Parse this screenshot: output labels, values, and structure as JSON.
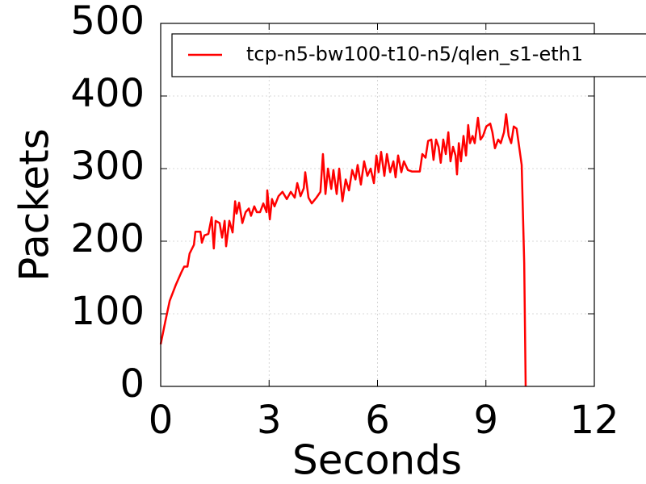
{
  "chart_data": {
    "type": "line",
    "x_label": "Seconds",
    "y_label": "Packets",
    "xlim": [
      0,
      12
    ],
    "xticks": [
      0,
      3,
      6,
      9,
      12
    ],
    "ylim": [
      0,
      500
    ],
    "yticks": [
      0,
      100,
      200,
      300,
      400,
      500
    ],
    "grid": true,
    "legend": "upper left",
    "series": [
      {
        "name": "tcp-n5-bw100-t10-n5/qlen_s1-eth1",
        "color": "#ff0000",
        "x": [
          0,
          0.13,
          0.25,
          0.42,
          0.58,
          0.65,
          0.74,
          0.8,
          0.92,
          0.96,
          1.1,
          1.14,
          1.21,
          1.32,
          1.41,
          1.47,
          1.52,
          1.63,
          1.7,
          1.77,
          1.81,
          1.9,
          1.99,
          2.06,
          2.1,
          2.17,
          2.26,
          2.35,
          2.44,
          2.5,
          2.59,
          2.66,
          2.75,
          2.84,
          2.93,
          2.95,
          3.02,
          3.08,
          3.15,
          3.26,
          3.37,
          3.49,
          3.6,
          3.71,
          3.78,
          3.87,
          3.96,
          4.0,
          4.09,
          4.18,
          4.31,
          4.42,
          4.49,
          4.56,
          4.63,
          4.72,
          4.78,
          4.87,
          4.94,
          5.03,
          5.12,
          5.21,
          5.3,
          5.39,
          5.45,
          5.54,
          5.63,
          5.72,
          5.81,
          5.9,
          5.97,
          6.03,
          6.1,
          6.19,
          6.26,
          6.35,
          6.44,
          6.5,
          6.57,
          6.66,
          6.73,
          6.84,
          6.95,
          7.17,
          7.24,
          7.33,
          7.4,
          7.49,
          7.55,
          7.62,
          7.69,
          7.75,
          7.82,
          7.89,
          7.96,
          8.02,
          8.09,
          8.16,
          8.2,
          8.25,
          8.31,
          8.38,
          8.45,
          8.51,
          8.56,
          8.63,
          8.69,
          8.78,
          8.85,
          8.92,
          9.01,
          9.12,
          9.18,
          9.25,
          9.34,
          9.41,
          9.5,
          9.56,
          9.63,
          9.7,
          9.77,
          9.85,
          9.92,
          9.99,
          10.06,
          10.1
        ],
        "values": [
          58,
          90,
          118,
          140,
          158,
          165,
          165,
          183,
          195,
          213,
          213,
          198,
          208,
          210,
          233,
          190,
          228,
          225,
          205,
          228,
          193,
          228,
          212,
          255,
          238,
          253,
          225,
          240,
          245,
          235,
          248,
          240,
          240,
          252,
          240,
          270,
          230,
          258,
          248,
          262,
          268,
          258,
          268,
          260,
          280,
          262,
          273,
          295,
          260,
          252,
          260,
          268,
          320,
          265,
          300,
          272,
          298,
          265,
          300,
          255,
          285,
          270,
          298,
          285,
          305,
          278,
          310,
          290,
          300,
          280,
          318,
          295,
          323,
          290,
          320,
          295,
          310,
          288,
          318,
          295,
          310,
          298,
          296,
          296,
          320,
          315,
          338,
          340,
          312,
          340,
          330,
          308,
          340,
          320,
          350,
          310,
          330,
          318,
          292,
          335,
          310,
          345,
          318,
          360,
          335,
          345,
          335,
          370,
          340,
          345,
          358,
          362,
          350,
          328,
          340,
          335,
          350,
          375,
          345,
          335,
          358,
          355,
          330,
          305,
          170,
          0
        ]
      }
    ]
  }
}
